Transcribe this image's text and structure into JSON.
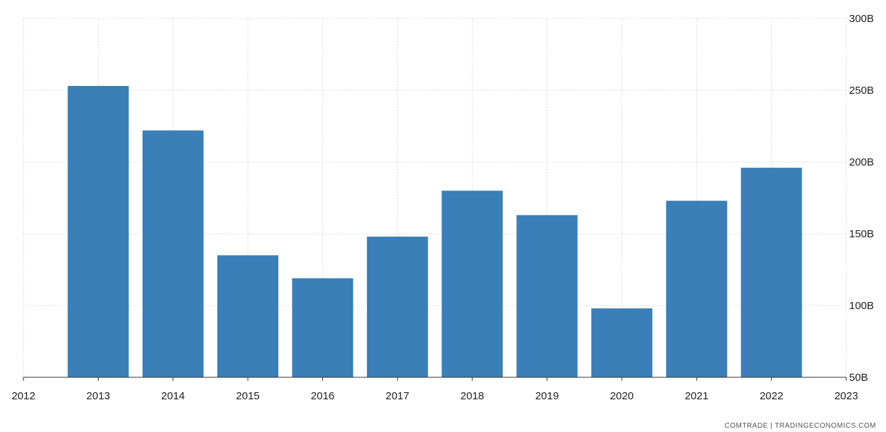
{
  "chart_data": {
    "type": "bar",
    "categories": [
      "2013",
      "2014",
      "2015",
      "2016",
      "2017",
      "2018",
      "2019",
      "2020",
      "2021",
      "2022"
    ],
    "values": [
      253,
      222,
      135,
      119,
      148,
      180,
      163,
      98,
      173,
      196
    ],
    "x_tick_labels": [
      "2012",
      "2013",
      "2014",
      "2015",
      "2016",
      "2017",
      "2018",
      "2019",
      "2020",
      "2021",
      "2022",
      "2023"
    ],
    "y_tick_values": [
      50,
      100,
      150,
      200,
      250,
      300
    ],
    "y_tick_labels": [
      "50B",
      "100B",
      "150B",
      "200B",
      "250B",
      "300B"
    ],
    "ylim": [
      50,
      300
    ],
    "xlim": [
      2012,
      2023
    ],
    "y_axis_position": "right",
    "grid": true,
    "bar_color": "#3a7fb7",
    "grid_color": "#d9d9d9",
    "title": "",
    "xlabel": "",
    "ylabel": ""
  },
  "source": "COMTRADE | TRADINGECONOMICS.COM"
}
